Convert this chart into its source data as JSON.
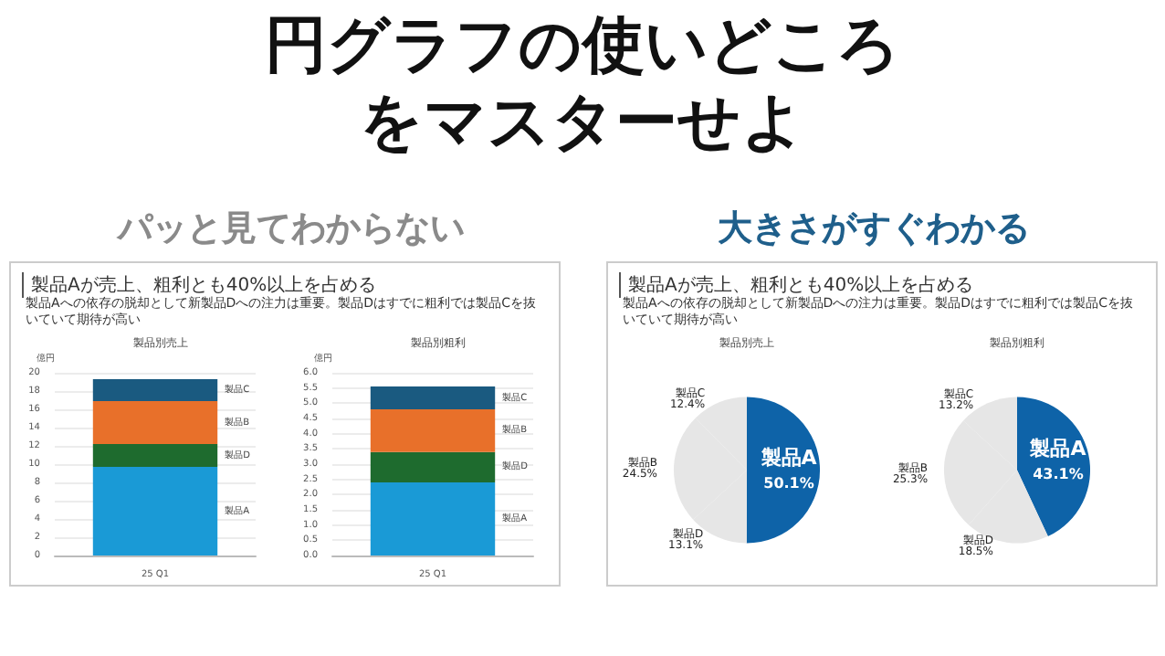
{
  "chart_data": [
    {
      "type": "other",
      "title": "円グラフの使いどころをマスターせよ",
      "annotations": [
        "パッと見てわからない",
        "大きさがすぐわかる",
        "製品Aが売上、粗利とも40%以上を占める",
        "製品Aへの依存の脱却として新製品Dへの注力は重要。製品Dはすでに粗利では製品Cを抜いていて期待が高い",
        "製品Aが売上、粗利とも40%以上を占める",
        "製品Aへの依存の脱却として新製品Dへの注力は重要。製品Dはすでに粗利では製品Cを抜いていて期待が高い"
      ]
    },
    {
      "type": "bar",
      "title": "製品別売上",
      "ylabel": "億円",
      "categories": [
        "25 Q1"
      ],
      "stacked": true,
      "grid": "y",
      "legend": false,
      "series": [
        {
          "name": "製品A",
          "color": "#1a9ad6",
          "values": [
            9.7
          ]
        },
        {
          "name": "製品D",
          "color": "#1e6b2e",
          "values": [
            2.5
          ]
        },
        {
          "name": "製品B",
          "color": "#e8702a",
          "values": [
            4.7
          ]
        },
        {
          "name": "製品C",
          "color": "#1a5a80",
          "values": [
            2.4
          ]
        }
      ],
      "ylim": [
        0,
        20
      ],
      "yticks": [
        0,
        2,
        4,
        6,
        8,
        10,
        12,
        14,
        16,
        18,
        20
      ]
    },
    {
      "type": "bar",
      "title": "製品別粗利",
      "ylabel": "億円",
      "categories": [
        "25 Q1"
      ],
      "stacked": true,
      "grid": "y",
      "legend": false,
      "series": [
        {
          "name": "製品A",
          "color": "#1a9ad6",
          "values": [
            2.4
          ]
        },
        {
          "name": "製品D",
          "color": "#1e6b2e",
          "values": [
            1.0
          ]
        },
        {
          "name": "製品B",
          "color": "#e8702a",
          "values": [
            1.4
          ]
        },
        {
          "name": "製品C",
          "color": "#1a5a80",
          "values": [
            0.75
          ]
        }
      ],
      "ylim": [
        0,
        6
      ],
      "yticks": [
        {
          "value": 0,
          "label": "0.0"
        },
        {
          "value": 0.5,
          "label": "0.5"
        },
        {
          "value": 1,
          "label": "1.0"
        },
        {
          "value": 1.5,
          "label": "1.5"
        },
        {
          "value": 2,
          "label": "2.0"
        },
        {
          "value": 2.5,
          "label": "2.5"
        },
        {
          "value": 3,
          "label": "3.0"
        },
        {
          "value": 3.5,
          "label": "3.5"
        },
        {
          "value": 4,
          "label": "4.0"
        },
        {
          "value": 4.5,
          "label": "4.5"
        },
        {
          "value": 5,
          "label": "5.0"
        },
        {
          "value": 5.5,
          "label": "5.5"
        },
        {
          "value": 6,
          "label": "6.0"
        }
      ]
    },
    {
      "type": "pie",
      "title": "製品別売上",
      "categories": [
        "製品A",
        "製品D",
        "製品B",
        "製品C"
      ],
      "values": [
        50.1,
        13.1,
        24.5,
        12.4
      ],
      "value_labels": [
        "50.1%",
        "13.1%",
        "24.5%",
        "12.4%"
      ],
      "colors": [
        "#0e63a8",
        "#e6e6e6",
        "#e6e6e6",
        "#e6e6e6"
      ],
      "legend": false
    },
    {
      "type": "pie",
      "title": "製品別粗利",
      "categories": [
        "製品A",
        "製品D",
        "製品B",
        "製品C"
      ],
      "values": [
        43.1,
        18.5,
        25.3,
        13.2
      ],
      "value_labels": [
        "43.1%",
        "18.5%",
        "25.3%",
        "13.2%"
      ],
      "colors": [
        "#0e63a8",
        "#e6e6e6",
        "#e6e6e6",
        "#e6e6e6"
      ],
      "legend": false
    }
  ]
}
